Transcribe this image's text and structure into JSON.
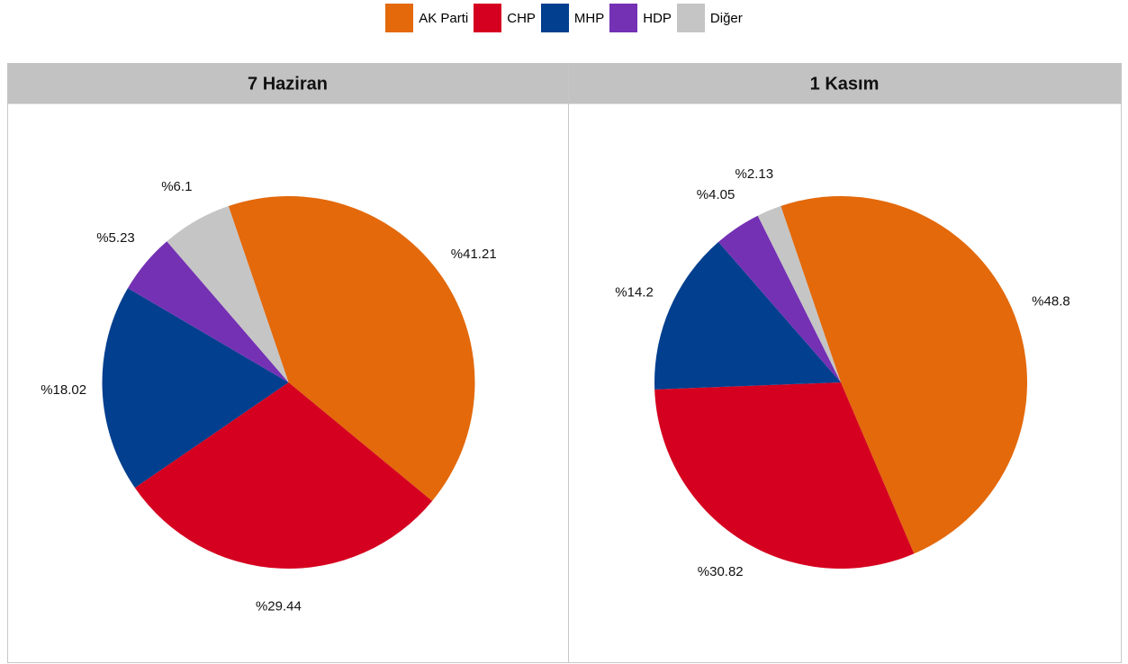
{
  "chart_data": [
    {
      "type": "pie",
      "title": "7 Haziran",
      "categories": [
        "AK Parti",
        "CHP",
        "MHP",
        "HDP",
        "Diğer"
      ],
      "values": [
        41.21,
        29.44,
        18.02,
        5.23,
        6.1
      ],
      "value_labels": [
        "%41.21",
        "%29.44",
        "%18.02",
        "%5.23",
        "%6.1"
      ],
      "colors": [
        "#e3690b",
        "#d5001f",
        "#023f8e",
        "#7431b4",
        "#c5c5c5"
      ]
    },
    {
      "type": "pie",
      "title": "1 Kasım",
      "categories": [
        "AK Parti",
        "CHP",
        "MHP",
        "HDP",
        "Diğer"
      ],
      "values": [
        48.8,
        30.82,
        14.2,
        4.05,
        2.13
      ],
      "value_labels": [
        "%48.8",
        "%30.82",
        "%14.2",
        "%4.05",
        "%2.13"
      ],
      "colors": [
        "#e3690b",
        "#d5001f",
        "#023f8e",
        "#7431b4",
        "#c5c5c5"
      ]
    }
  ]
}
